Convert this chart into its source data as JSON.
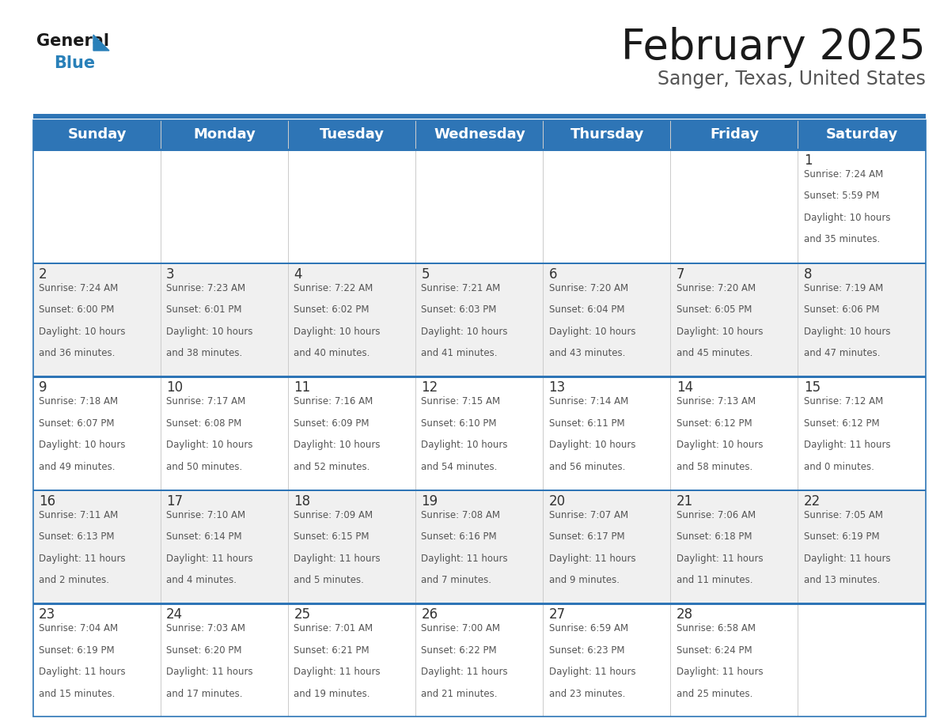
{
  "title": "February 2025",
  "subtitle": "Sanger, Texas, United States",
  "header_bg_color": "#2E75B6",
  "header_text_color": "#FFFFFF",
  "header_days": [
    "Sunday",
    "Monday",
    "Tuesday",
    "Wednesday",
    "Thursday",
    "Friday",
    "Saturday"
  ],
  "cell_bg_even": "#FFFFFF",
  "cell_bg_odd": "#F0F0F0",
  "border_color": "#2E75B6",
  "day_number_color": "#333333",
  "cell_text_color": "#555555",
  "title_color": "#1a1a1a",
  "subtitle_color": "#555555",
  "logo_black_color": "#1a1a1a",
  "logo_blue_color": "#2980B9",
  "days_data": [
    {
      "day": 1,
      "col": 6,
      "row": 0,
      "sunrise": "7:24 AM",
      "sunset": "5:59 PM",
      "daylight": "10 hours and 35 minutes."
    },
    {
      "day": 2,
      "col": 0,
      "row": 1,
      "sunrise": "7:24 AM",
      "sunset": "6:00 PM",
      "daylight": "10 hours and 36 minutes."
    },
    {
      "day": 3,
      "col": 1,
      "row": 1,
      "sunrise": "7:23 AM",
      "sunset": "6:01 PM",
      "daylight": "10 hours and 38 minutes."
    },
    {
      "day": 4,
      "col": 2,
      "row": 1,
      "sunrise": "7:22 AM",
      "sunset": "6:02 PM",
      "daylight": "10 hours and 40 minutes."
    },
    {
      "day": 5,
      "col": 3,
      "row": 1,
      "sunrise": "7:21 AM",
      "sunset": "6:03 PM",
      "daylight": "10 hours and 41 minutes."
    },
    {
      "day": 6,
      "col": 4,
      "row": 1,
      "sunrise": "7:20 AM",
      "sunset": "6:04 PM",
      "daylight": "10 hours and 43 minutes."
    },
    {
      "day": 7,
      "col": 5,
      "row": 1,
      "sunrise": "7:20 AM",
      "sunset": "6:05 PM",
      "daylight": "10 hours and 45 minutes."
    },
    {
      "day": 8,
      "col": 6,
      "row": 1,
      "sunrise": "7:19 AM",
      "sunset": "6:06 PM",
      "daylight": "10 hours and 47 minutes."
    },
    {
      "day": 9,
      "col": 0,
      "row": 2,
      "sunrise": "7:18 AM",
      "sunset": "6:07 PM",
      "daylight": "10 hours and 49 minutes."
    },
    {
      "day": 10,
      "col": 1,
      "row": 2,
      "sunrise": "7:17 AM",
      "sunset": "6:08 PM",
      "daylight": "10 hours and 50 minutes."
    },
    {
      "day": 11,
      "col": 2,
      "row": 2,
      "sunrise": "7:16 AM",
      "sunset": "6:09 PM",
      "daylight": "10 hours and 52 minutes."
    },
    {
      "day": 12,
      "col": 3,
      "row": 2,
      "sunrise": "7:15 AM",
      "sunset": "6:10 PM",
      "daylight": "10 hours and 54 minutes."
    },
    {
      "day": 13,
      "col": 4,
      "row": 2,
      "sunrise": "7:14 AM",
      "sunset": "6:11 PM",
      "daylight": "10 hours and 56 minutes."
    },
    {
      "day": 14,
      "col": 5,
      "row": 2,
      "sunrise": "7:13 AM",
      "sunset": "6:12 PM",
      "daylight": "10 hours and 58 minutes."
    },
    {
      "day": 15,
      "col": 6,
      "row": 2,
      "sunrise": "7:12 AM",
      "sunset": "6:12 PM",
      "daylight": "11 hours and 0 minutes."
    },
    {
      "day": 16,
      "col": 0,
      "row": 3,
      "sunrise": "7:11 AM",
      "sunset": "6:13 PM",
      "daylight": "11 hours and 2 minutes."
    },
    {
      "day": 17,
      "col": 1,
      "row": 3,
      "sunrise": "7:10 AM",
      "sunset": "6:14 PM",
      "daylight": "11 hours and 4 minutes."
    },
    {
      "day": 18,
      "col": 2,
      "row": 3,
      "sunrise": "7:09 AM",
      "sunset": "6:15 PM",
      "daylight": "11 hours and 5 minutes."
    },
    {
      "day": 19,
      "col": 3,
      "row": 3,
      "sunrise": "7:08 AM",
      "sunset": "6:16 PM",
      "daylight": "11 hours and 7 minutes."
    },
    {
      "day": 20,
      "col": 4,
      "row": 3,
      "sunrise": "7:07 AM",
      "sunset": "6:17 PM",
      "daylight": "11 hours and 9 minutes."
    },
    {
      "day": 21,
      "col": 5,
      "row": 3,
      "sunrise": "7:06 AM",
      "sunset": "6:18 PM",
      "daylight": "11 hours and 11 minutes."
    },
    {
      "day": 22,
      "col": 6,
      "row": 3,
      "sunrise": "7:05 AM",
      "sunset": "6:19 PM",
      "daylight": "11 hours and 13 minutes."
    },
    {
      "day": 23,
      "col": 0,
      "row": 4,
      "sunrise": "7:04 AM",
      "sunset": "6:19 PM",
      "daylight": "11 hours and 15 minutes."
    },
    {
      "day": 24,
      "col": 1,
      "row": 4,
      "sunrise": "7:03 AM",
      "sunset": "6:20 PM",
      "daylight": "11 hours and 17 minutes."
    },
    {
      "day": 25,
      "col": 2,
      "row": 4,
      "sunrise": "7:01 AM",
      "sunset": "6:21 PM",
      "daylight": "11 hours and 19 minutes."
    },
    {
      "day": 26,
      "col": 3,
      "row": 4,
      "sunrise": "7:00 AM",
      "sunset": "6:22 PM",
      "daylight": "11 hours and 21 minutes."
    },
    {
      "day": 27,
      "col": 4,
      "row": 4,
      "sunrise": "6:59 AM",
      "sunset": "6:23 PM",
      "daylight": "11 hours and 23 minutes."
    },
    {
      "day": 28,
      "col": 5,
      "row": 4,
      "sunrise": "6:58 AM",
      "sunset": "6:24 PM",
      "daylight": "11 hours and 25 minutes."
    }
  ]
}
